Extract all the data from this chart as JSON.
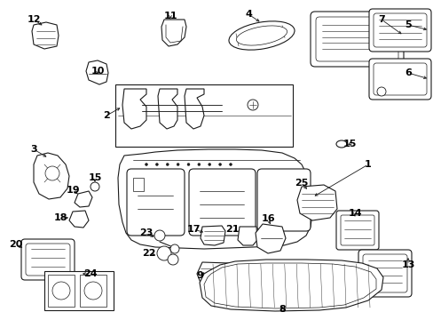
{
  "bg_color": "#ffffff",
  "line_color": "#1a1a1a",
  "text_color": "#000000",
  "font_size": 8,
  "lw": 0.8
}
